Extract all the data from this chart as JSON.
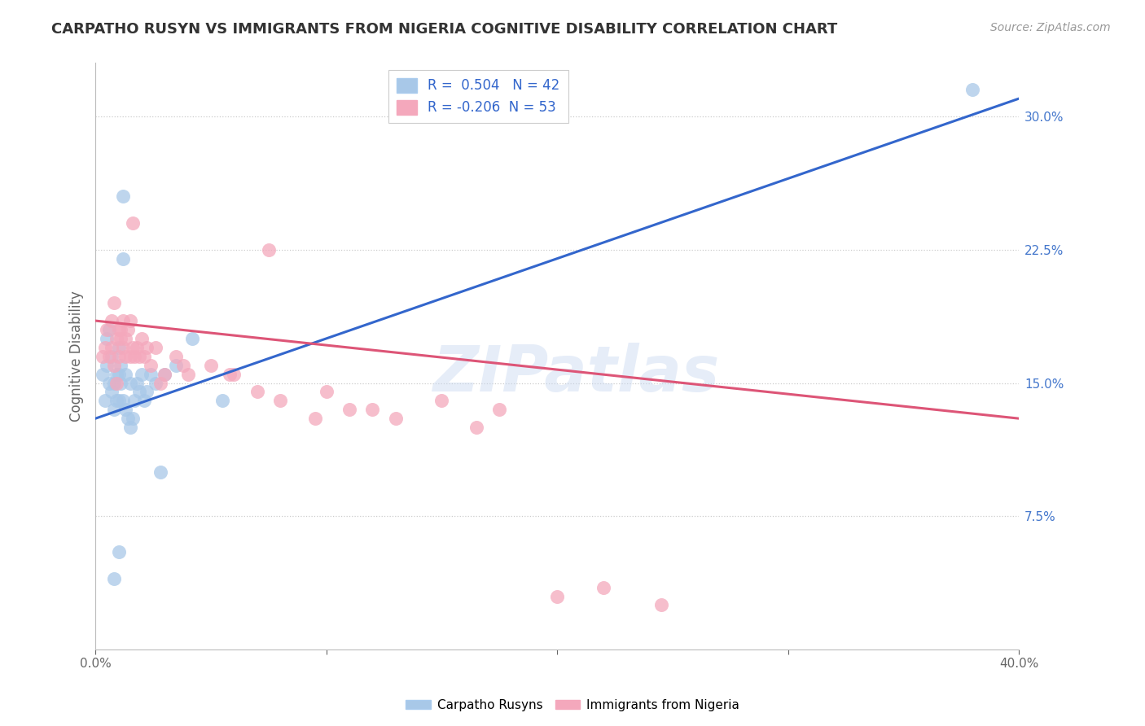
{
  "title": "CARPATHO RUSYN VS IMMIGRANTS FROM NIGERIA COGNITIVE DISABILITY CORRELATION CHART",
  "source": "Source: ZipAtlas.com",
  "ylabel": "Cognitive Disability",
  "xlim": [
    0.0,
    40.0
  ],
  "ylim": [
    0.0,
    33.0
  ],
  "xtick_positions": [
    0.0,
    10.0,
    20.0,
    30.0,
    40.0
  ],
  "xtick_labels": [
    "0.0%",
    "",
    "",
    "",
    "40.0%"
  ],
  "yticks_right": [
    7.5,
    15.0,
    22.5,
    30.0
  ],
  "ytick_labels_right": [
    "7.5%",
    "15.0%",
    "22.5%",
    "30.0%"
  ],
  "blue_R": 0.504,
  "blue_N": 42,
  "pink_R": -0.206,
  "pink_N": 53,
  "blue_color": "#a8c8e8",
  "pink_color": "#f4a8bc",
  "blue_line_color": "#3366cc",
  "pink_line_color": "#dd5577",
  "legend_label_blue": "Carpatho Rusyns",
  "legend_label_pink": "Immigrants from Nigeria",
  "watermark": "ZIPatlas",
  "blue_line_x0": 0.0,
  "blue_line_y0": 13.0,
  "blue_line_x1": 40.0,
  "blue_line_y1": 31.0,
  "pink_line_x0": 0.0,
  "pink_line_y0": 18.5,
  "pink_line_x1": 40.0,
  "pink_line_y1": 13.0,
  "blue_scatter_x": [
    0.3,
    0.4,
    0.5,
    0.5,
    0.6,
    0.6,
    0.7,
    0.7,
    0.8,
    0.8,
    0.9,
    0.9,
    1.0,
    1.0,
    1.0,
    1.1,
    1.1,
    1.2,
    1.2,
    1.3,
    1.3,
    1.4,
    1.5,
    1.5,
    1.6,
    1.7,
    1.8,
    1.9,
    2.0,
    2.1,
    2.2,
    2.4,
    2.6,
    3.0,
    3.5,
    4.2,
    5.5,
    38.0,
    1.2,
    2.8,
    1.0,
    0.8
  ],
  "blue_scatter_y": [
    15.5,
    14.0,
    16.0,
    17.5,
    15.0,
    18.0,
    14.5,
    16.5,
    15.0,
    13.5,
    15.5,
    14.0,
    17.0,
    15.5,
    14.0,
    16.0,
    15.0,
    22.0,
    14.0,
    15.5,
    13.5,
    13.0,
    15.0,
    12.5,
    13.0,
    14.0,
    15.0,
    14.5,
    15.5,
    14.0,
    14.5,
    15.5,
    15.0,
    15.5,
    16.0,
    17.5,
    14.0,
    31.5,
    25.5,
    10.0,
    5.5,
    4.0
  ],
  "pink_scatter_x": [
    0.3,
    0.4,
    0.5,
    0.6,
    0.7,
    0.7,
    0.8,
    0.8,
    0.9,
    1.0,
    1.0,
    1.1,
    1.1,
    1.2,
    1.2,
    1.3,
    1.3,
    1.4,
    1.5,
    1.5,
    1.6,
    1.7,
    1.8,
    1.9,
    2.0,
    2.1,
    2.2,
    2.4,
    2.6,
    3.0,
    3.5,
    4.0,
    5.0,
    6.0,
    7.5,
    8.0,
    10.0,
    12.0,
    15.0,
    17.5,
    22.0,
    2.8,
    3.8,
    5.8,
    7.0,
    9.5,
    11.0,
    13.0,
    16.5,
    20.0,
    24.5,
    1.6,
    0.9
  ],
  "pink_scatter_y": [
    16.5,
    17.0,
    18.0,
    16.5,
    18.5,
    17.0,
    19.5,
    16.0,
    17.5,
    18.0,
    16.5,
    17.5,
    18.0,
    18.5,
    17.0,
    17.5,
    16.5,
    18.0,
    18.5,
    16.5,
    17.0,
    16.5,
    17.0,
    16.5,
    17.5,
    16.5,
    17.0,
    16.0,
    17.0,
    15.5,
    16.5,
    15.5,
    16.0,
    15.5,
    22.5,
    14.0,
    14.5,
    13.5,
    14.0,
    13.5,
    3.5,
    15.0,
    16.0,
    15.5,
    14.5,
    13.0,
    13.5,
    13.0,
    12.5,
    3.0,
    2.5,
    24.0,
    15.0
  ]
}
